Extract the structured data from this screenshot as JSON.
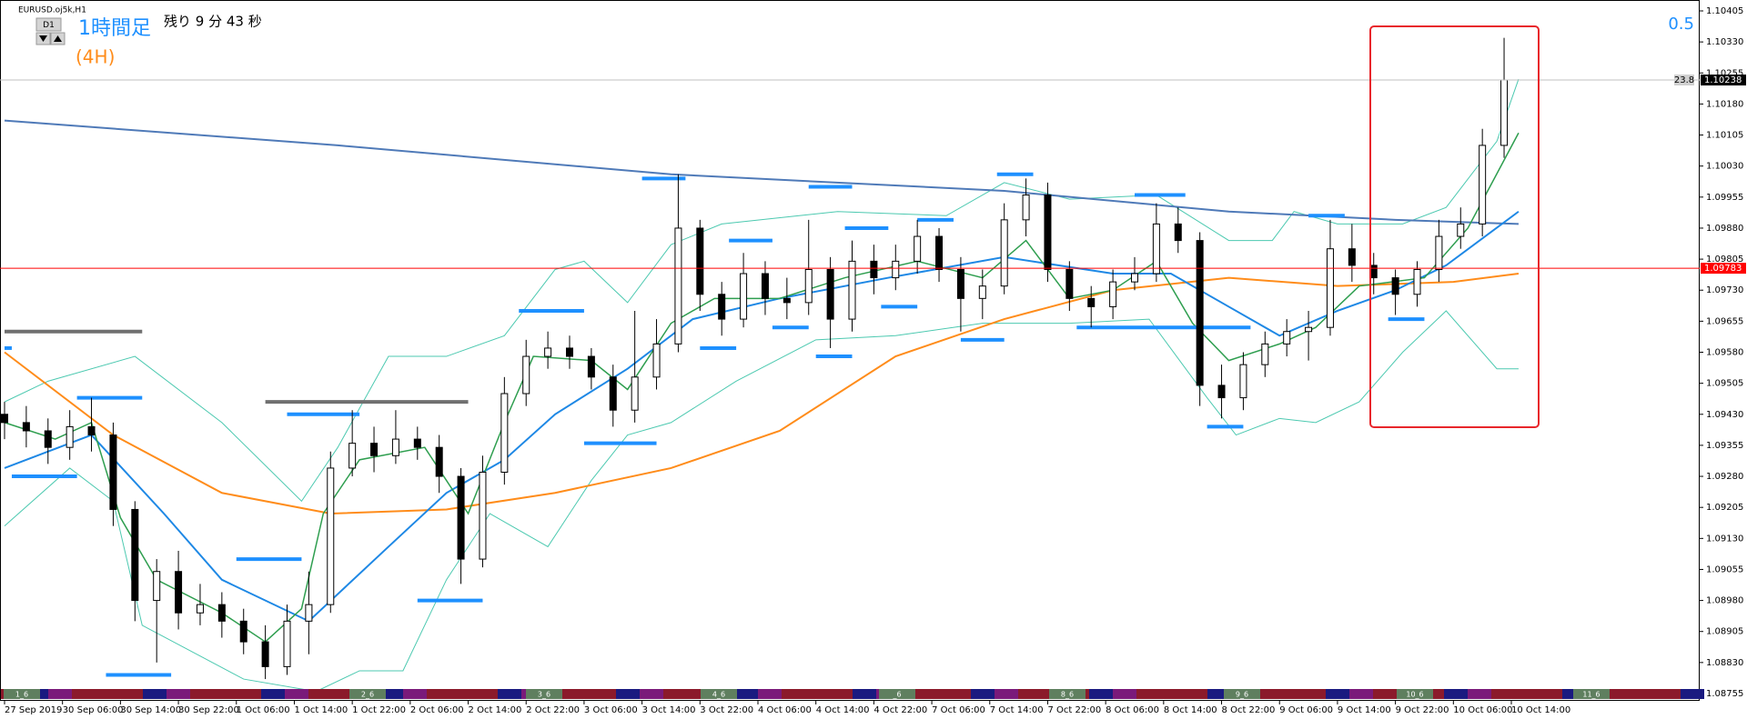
{
  "header": {
    "symbol": "EURUSD.oj5k,H1",
    "timeframe_button": "D1",
    "title": "1時間足",
    "subtitle": "(4H)",
    "countdown": "残り 9 分 43 秒",
    "corner_value": "0.5",
    "session_labels": [
      "1_6",
      "2_6",
      "3_6",
      "4_6",
      "_6",
      "8_6",
      "9_6",
      "10_6",
      "11_6"
    ]
  },
  "chart_data": {
    "type": "candlestick",
    "x": [
      0,
      3,
      6,
      9,
      12,
      15,
      18,
      21,
      24,
      27,
      30,
      33,
      36,
      39,
      42,
      45,
      48,
      51,
      54,
      57,
      60,
      63,
      66,
      69,
      72,
      75,
      78,
      81,
      84,
      87,
      90,
      93,
      96,
      99,
      102,
      105,
      108,
      111,
      114,
      117,
      120,
      123,
      126,
      129,
      132,
      135,
      138,
      141,
      144,
      147,
      150,
      153,
      156,
      159,
      162,
      165,
      168,
      171,
      174,
      177,
      180,
      183,
      186,
      189,
      192,
      195,
      198,
      201,
      204,
      207
    ],
    "open": [
      1.0943,
      1.0941,
      1.0939,
      1.0935,
      1.094,
      1.0938,
      1.092,
      1.0898,
      1.0905,
      1.0895,
      1.0897,
      1.0893,
      1.0888,
      1.0882,
      1.0893,
      1.0897,
      1.093,
      1.0936,
      1.0933,
      1.0937,
      1.0935,
      1.0928,
      1.0908,
      1.0929,
      1.0948,
      1.0957,
      1.0959,
      1.0957,
      1.0952,
      1.0944,
      1.0952,
      1.096,
      1.0988,
      1.0972,
      1.0966,
      1.0977,
      1.0971,
      1.097,
      1.0978,
      1.0966,
      1.098,
      1.0976,
      1.098,
      1.0986,
      1.0978,
      1.0971,
      1.0974,
      1.099,
      1.0996,
      1.0978,
      1.0971,
      1.0969,
      1.0975,
      1.0977,
      1.0989,
      1.0985,
      1.095,
      1.0947,
      1.0955,
      1.096,
      1.0963,
      1.0964,
      1.0983,
      1.0979,
      1.0976,
      1.0972,
      1.0978,
      1.0986,
      1.0989,
      1.1008
    ],
    "high": [
      1.0946,
      1.0945,
      1.0942,
      1.0944,
      1.0947,
      1.0941,
      1.0922,
      1.0908,
      1.091,
      1.0902,
      1.09,
      1.0896,
      1.0892,
      1.0897,
      1.0905,
      1.0934,
      1.0944,
      1.094,
      1.0944,
      1.094,
      1.0938,
      1.093,
      1.0933,
      1.0952,
      1.0961,
      1.0963,
      1.0962,
      1.0959,
      1.0955,
      1.0968,
      1.0966,
      1.1001,
      1.099,
      1.0975,
      1.0982,
      1.098,
      1.0976,
      1.099,
      1.0981,
      1.0985,
      1.0984,
      1.0984,
      1.099,
      1.0988,
      1.0981,
      1.0978,
      1.0994,
      1.1,
      1.0999,
      1.098,
      1.0974,
      1.0978,
      1.0981,
      1.0994,
      1.0993,
      1.0987,
      1.0955,
      1.0958,
      1.0963,
      1.0966,
      1.0968,
      1.099,
      1.0989,
      1.0982,
      1.0978,
      1.098,
      1.099,
      1.0993,
      1.1012,
      1.1034
    ],
    "low": [
      1.0937,
      1.0935,
      1.0931,
      1.0932,
      1.0934,
      1.0916,
      1.0893,
      1.0883,
      1.0891,
      1.0892,
      1.0889,
      1.0885,
      1.0879,
      1.088,
      1.0885,
      1.0895,
      1.0928,
      1.0929,
      1.0931,
      1.0932,
      1.0924,
      1.0902,
      1.0906,
      1.0926,
      1.0945,
      1.0954,
      1.0954,
      1.0949,
      1.094,
      1.0941,
      1.0949,
      1.0958,
      1.0968,
      1.0962,
      1.0964,
      1.0967,
      1.0966,
      1.0967,
      1.0959,
      1.0963,
      1.0972,
      1.0973,
      1.0977,
      1.0975,
      1.0963,
      1.0966,
      1.0972,
      1.0986,
      1.0975,
      1.0968,
      1.0964,
      1.0966,
      1.0973,
      1.0975,
      1.0982,
      1.0945,
      1.0942,
      1.0944,
      1.0952,
      1.0957,
      1.0956,
      1.0962,
      1.0975,
      1.0972,
      1.0967,
      1.0969,
      1.0975,
      1.0983,
      1.0986,
      1.1005
    ],
    "close": [
      1.0941,
      1.0939,
      1.0935,
      1.094,
      1.0938,
      1.092,
      1.0898,
      1.0905,
      1.0895,
      1.0897,
      1.0893,
      1.0888,
      1.0882,
      1.0893,
      1.0897,
      1.093,
      1.0936,
      1.0933,
      1.0937,
      1.0935,
      1.0928,
      1.0908,
      1.0929,
      1.0948,
      1.0957,
      1.0959,
      1.0957,
      1.0952,
      1.0944,
      1.0952,
      1.096,
      1.0988,
      1.0972,
      1.0966,
      1.0977,
      1.0971,
      1.097,
      1.0978,
      1.0966,
      1.098,
      1.0976,
      1.098,
      1.0986,
      1.0978,
      1.0971,
      1.0974,
      1.099,
      1.0996,
      1.0978,
      1.0971,
      1.0969,
      1.0975,
      1.0977,
      1.0989,
      1.0985,
      1.095,
      1.0947,
      1.0955,
      1.096,
      1.0963,
      1.0964,
      1.0983,
      1.0979,
      1.0976,
      1.0972,
      1.0978,
      1.0986,
      1.0989,
      1.1008,
      1.10238
    ],
    "up_color": "#ffffff",
    "down_color": "#000000",
    "xlim": [
      0,
      234
    ],
    "xticks": [
      {
        "value": 0,
        "label": "27 Sep 2019"
      },
      {
        "value": 8,
        "label": "30 Sep 06:00"
      },
      {
        "value": 16,
        "label": "30 Sep 14:00"
      },
      {
        "value": 24,
        "label": "30 Sep 22:00"
      },
      {
        "value": 32,
        "label": "1 Oct 06:00"
      },
      {
        "value": 40,
        "label": "1 Oct 14:00"
      },
      {
        "value": 48,
        "label": "1 Oct 22:00"
      },
      {
        "value": 56,
        "label": "2 Oct 06:00"
      },
      {
        "value": 64,
        "label": "2 Oct 14:00"
      },
      {
        "value": 72,
        "label": "2 Oct 22:00"
      },
      {
        "value": 80,
        "label": "3 Oct 06:00"
      },
      {
        "value": 88,
        "label": "3 Oct 14:00"
      },
      {
        "value": 96,
        "label": "3 Oct 22:00"
      },
      {
        "value": 104,
        "label": "4 Oct 06:00"
      },
      {
        "value": 112,
        "label": "4 Oct 14:00"
      },
      {
        "value": 120,
        "label": "4 Oct 22:00"
      },
      {
        "value": 128,
        "label": "7 Oct 06:00"
      },
      {
        "value": 136,
        "label": "7 Oct 14:00"
      },
      {
        "value": 144,
        "label": "7 Oct 22:00"
      },
      {
        "value": 152,
        "label": "8 Oct 06:00"
      },
      {
        "value": 160,
        "label": "8 Oct 14:00"
      },
      {
        "value": 168,
        "label": "8 Oct 22:00"
      },
      {
        "value": 176,
        "label": "9 Oct 06:00"
      },
      {
        "value": 184,
        "label": "9 Oct 14:00"
      },
      {
        "value": 192,
        "label": "9 Oct 22:00"
      },
      {
        "value": 200,
        "label": "10 Oct 06:00"
      },
      {
        "value": 208,
        "label": "10 Oct 14:00"
      }
    ],
    "ylim": [
      1.08755,
      1.10405
    ],
    "yticks": [
      1.10405,
      {
        "value": 1.1033,
        "label": "1.10330"
      },
      1.10255,
      {
        "value": 1.1018,
        "label": "1.10180"
      },
      1.10105,
      {
        "value": 1.1003,
        "label": "1.10030"
      },
      1.09955,
      {
        "value": 1.0988,
        "label": "1.09880"
      },
      1.09805,
      {
        "value": 1.0973,
        "label": "1.09730"
      },
      1.09655,
      {
        "value": 1.0958,
        "label": "1.09580"
      },
      1.09505,
      {
        "value": 1.0943,
        "label": "1.09430"
      },
      1.09355,
      {
        "value": 1.0928,
        "label": "1.09280"
      },
      1.09205,
      {
        "value": 1.0913,
        "label": "1.09130"
      },
      1.09055,
      {
        "value": 1.0898,
        "label": "1.08980"
      },
      1.08905,
      {
        "value": 1.0883,
        "label": "1.08830"
      },
      1.08755
    ],
    "grid": false,
    "overlays": [
      {
        "color": "#4cc9b0",
        "width": 1,
        "x": [
          0,
          6,
          18,
          30,
          41,
          46,
          53,
          61,
          69,
          76,
          80,
          86,
          92,
          99,
          115,
          130,
          138,
          147,
          159,
          169,
          175,
          178,
          184,
          193,
          199,
          206,
          209
        ],
        "values": [
          1.0946,
          1.0951,
          1.0957,
          1.0941,
          1.0922,
          1.0935,
          1.0957,
          1.0957,
          1.0962,
          1.0978,
          1.098,
          1.097,
          1.0984,
          1.0989,
          1.0992,
          1.0991,
          1.0999,
          1.0995,
          1.0996,
          1.0985,
          1.0985,
          1.0992,
          1.0989,
          1.0989,
          1.0993,
          1.1009,
          1.1024
        ]
      },
      {
        "color": "#4cc9b0",
        "width": 1,
        "x": [
          0,
          9,
          15,
          19,
          33,
          43,
          49,
          55,
          61,
          67,
          75,
          81,
          86,
          92,
          101,
          112,
          123,
          135,
          147,
          158,
          166,
          170,
          176,
          181,
          187,
          193,
          199,
          206,
          209
        ],
        "values": [
          1.0916,
          1.093,
          1.0922,
          1.0892,
          1.0879,
          1.0876,
          1.0881,
          1.0881,
          1.0903,
          1.0919,
          1.0911,
          1.0927,
          1.0938,
          1.0941,
          1.0951,
          1.0961,
          1.0962,
          1.0965,
          1.0965,
          1.0966,
          1.0947,
          1.0938,
          1.0942,
          1.0941,
          1.0946,
          1.0958,
          1.0968,
          1.0954,
          1.0954
        ]
      },
      {
        "color": "#4f7ab8",
        "width": 2,
        "x": [
          0,
          46,
          92,
          138,
          169,
          192,
          209
        ],
        "values": [
          1.1014,
          1.1008,
          1.1001,
          1.0997,
          1.0992,
          1.099,
          1.0989
        ]
      },
      {
        "color": "#ff8c1a",
        "width": 2,
        "x": [
          0,
          15,
          30,
          45,
          61,
          76,
          92,
          107,
          123,
          138,
          153,
          169,
          184,
          200,
          209
        ],
        "values": [
          1.0958,
          1.0938,
          1.0924,
          1.0919,
          1.092,
          1.0924,
          1.093,
          1.0939,
          1.0957,
          1.0966,
          1.0973,
          1.0976,
          1.0974,
          1.0975,
          1.0977
        ]
      },
      {
        "color": "#1e88e5",
        "width": 2,
        "x": [
          0,
          12,
          22,
          30,
          42,
          53,
          61,
          69,
          76,
          86,
          95,
          107,
          122,
          138,
          153,
          161,
          169,
          176,
          184,
          192,
          199,
          209
        ],
        "values": [
          1.093,
          1.0938,
          1.0919,
          1.0903,
          1.0893,
          1.0911,
          1.0924,
          1.0932,
          1.0943,
          1.0954,
          1.0966,
          1.0971,
          1.0976,
          1.0981,
          1.0977,
          1.0977,
          1.0969,
          1.0962,
          1.0968,
          1.0973,
          1.0979,
          1.0992
        ]
      },
      {
        "color": "#2e9e4f",
        "width": 1.5,
        "x": [
          0,
          7,
          12,
          16,
          21,
          30,
          36,
          41,
          44,
          49,
          58,
          61,
          64,
          69,
          73,
          81,
          86,
          92,
          98,
          107,
          116,
          126,
          135,
          141,
          147,
          153,
          159,
          164,
          169,
          176,
          181,
          187,
          196,
          202,
          209
        ],
        "values": [
          1.0941,
          1.0937,
          1.0941,
          1.0918,
          1.0903,
          1.0895,
          1.0888,
          1.0896,
          1.0919,
          1.0932,
          1.0935,
          1.0927,
          1.0919,
          1.0941,
          1.0957,
          1.0956,
          1.0949,
          1.0965,
          1.0971,
          1.0971,
          1.0976,
          1.098,
          1.0976,
          1.0985,
          1.0971,
          1.0973,
          1.098,
          1.0965,
          1.0956,
          1.096,
          1.0964,
          1.0974,
          1.0976,
          1.0988,
          1.1011
        ]
      }
    ],
    "levels": [
      {
        "x": [
          0,
          19
        ],
        "value": 1.0963,
        "color": "#707070"
      },
      {
        "x": [
          36,
          64
        ],
        "value": 1.0946,
        "color": "#707070"
      },
      {
        "x": [
          0,
          1
        ],
        "value": 1.0959,
        "color": "#1e90ff"
      },
      {
        "x": [
          1,
          10
        ],
        "value": 1.0928,
        "color": "#1e90ff"
      },
      {
        "x": [
          10,
          19
        ],
        "value": 1.0947,
        "color": "#1e90ff"
      },
      {
        "x": [
          14,
          23
        ],
        "value": 1.088,
        "color": "#1e90ff"
      },
      {
        "x": [
          32,
          41
        ],
        "value": 1.0908,
        "color": "#1e90ff"
      },
      {
        "x": [
          39,
          49
        ],
        "value": 1.0943,
        "color": "#1e90ff"
      },
      {
        "x": [
          57,
          66
        ],
        "value": 1.0898,
        "color": "#1e90ff"
      },
      {
        "x": [
          71,
          80
        ],
        "value": 1.0968,
        "color": "#1e90ff"
      },
      {
        "x": [
          80,
          90
        ],
        "value": 1.0936,
        "color": "#1e90ff"
      },
      {
        "x": [
          88,
          94
        ],
        "value": 1.1,
        "color": "#1e90ff"
      },
      {
        "x": [
          96,
          101
        ],
        "value": 1.0959,
        "color": "#1e90ff"
      },
      {
        "x": [
          100,
          106
        ],
        "value": 1.0985,
        "color": "#1e90ff"
      },
      {
        "x": [
          106,
          111
        ],
        "value": 1.0964,
        "color": "#1e90ff"
      },
      {
        "x": [
          111,
          117
        ],
        "value": 1.0998,
        "color": "#1e90ff"
      },
      {
        "x": [
          112,
          117
        ],
        "value": 1.0957,
        "color": "#1e90ff"
      },
      {
        "x": [
          116,
          122
        ],
        "value": 1.0988,
        "color": "#1e90ff"
      },
      {
        "x": [
          121,
          126
        ],
        "value": 1.0969,
        "color": "#1e90ff"
      },
      {
        "x": [
          126,
          131
        ],
        "value": 1.099,
        "color": "#1e90ff"
      },
      {
        "x": [
          132,
          138
        ],
        "value": 1.0961,
        "color": "#1e90ff"
      },
      {
        "x": [
          137,
          142
        ],
        "value": 1.1001,
        "color": "#1e90ff"
      },
      {
        "x": [
          148,
          172
        ],
        "value": 1.0964,
        "color": "#1e90ff"
      },
      {
        "x": [
          156,
          163
        ],
        "value": 1.0996,
        "color": "#1e90ff"
      },
      {
        "x": [
          166,
          171
        ],
        "value": 1.094,
        "color": "#1e90ff"
      },
      {
        "x": [
          180,
          185
        ],
        "value": 1.0991,
        "color": "#1e90ff"
      },
      {
        "x": [
          191,
          196
        ],
        "value": 1.0966,
        "color": "#1e90ff"
      }
    ],
    "price_lines": [
      {
        "value": 1.10238,
        "color": "#c0c0c0",
        "label_color": "#000000"
      },
      {
        "value": 1.09783,
        "color": "#ff0000",
        "label_color": "#ff0000"
      }
    ],
    "spread": 23.8
  }
}
